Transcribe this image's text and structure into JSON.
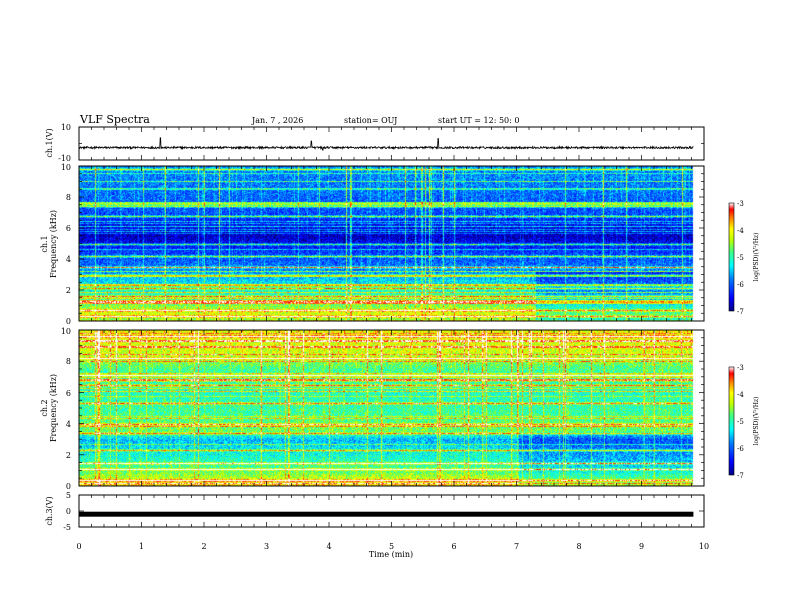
{
  "header": {
    "title": "VLF Spectra",
    "date": "Jan. 7 , 2026",
    "station": "station= OUJ",
    "start": "start UT =  12: 50: 0"
  },
  "colors": {
    "colormap": [
      "#000080",
      "#0000ff",
      "#0080ff",
      "#00ffff",
      "#40ff80",
      "#c0ff00",
      "#ffff00",
      "#ff8000",
      "#ff0000",
      "#ffffff"
    ],
    "background": "#ffffff",
    "waveform": "#000000"
  },
  "chart_data": [
    {
      "type": "line",
      "name": "ch1-waveform",
      "ylabel": "ch.1(V)",
      "ylim": [
        -10,
        10
      ],
      "ytick_labels": [
        "10",
        "-10"
      ],
      "xlim": [
        0,
        10
      ],
      "data_end_min": 9.83,
      "baseline": -2.5,
      "noise_amplitude": 0.6,
      "spikes": [
        [
          1.3,
          3.5
        ],
        [
          3.9,
          -4.0
        ],
        [
          5.75,
          3.0
        ],
        [
          3.72,
          1.5
        ]
      ]
    },
    {
      "type": "heatmap",
      "name": "ch1-spectrogram",
      "ylabel": "Frequency (kHz)",
      "channel_label": "ch.1",
      "xlim": [
        0,
        10
      ],
      "ylim": [
        0,
        10
      ],
      "ytick_labels": [
        "0",
        "2",
        "4",
        "6",
        "8",
        "10"
      ],
      "data_end_min": 9.83,
      "base_level_by_freq": [
        [
          0,
          -4.7
        ],
        [
          0.5,
          -4.2
        ],
        [
          1.5,
          -5.0
        ],
        [
          2.5,
          -5.4
        ],
        [
          3.5,
          -5.9
        ],
        [
          4.5,
          -6.2
        ],
        [
          5.5,
          -6.8
        ],
        [
          7,
          -6.1
        ],
        [
          8.5,
          -5.9
        ],
        [
          10,
          -5.8
        ]
      ],
      "tones_khz": [
        0.3,
        0.7,
        1.2,
        1.6,
        2.1,
        2.3,
        3.0,
        3.5,
        4.2,
        5.0,
        6.8,
        7.4,
        7.6,
        9.8
      ],
      "colorbar": {
        "label": "log(PSD)(V²/Hz)",
        "range": [
          -7,
          -3
        ],
        "tick_labels": [
          "-3",
          "-4",
          "-5",
          "-6",
          "-7"
        ]
      }
    },
    {
      "type": "heatmap",
      "name": "ch2-spectrogram",
      "ylabel": "Frequency (kHz)",
      "channel_label": "ch.2",
      "xlim": [
        0,
        10
      ],
      "ylim": [
        0,
        10
      ],
      "ytick_labels": [
        "0",
        "2",
        "4",
        "6",
        "8",
        "10"
      ],
      "data_end_min": 9.83,
      "base_level_by_freq": [
        [
          0,
          -3.8
        ],
        [
          1,
          -4.8
        ],
        [
          2,
          -5.2
        ],
        [
          3,
          -5.6
        ],
        [
          3.6,
          -4.7
        ],
        [
          4.5,
          -4.9
        ],
        [
          6,
          -5.1
        ],
        [
          7.5,
          -4.9
        ],
        [
          8.5,
          -4.3
        ],
        [
          10,
          -4.1
        ]
      ],
      "tones_khz": [
        0.4,
        1.1,
        1.5,
        2.3,
        3.4,
        4.0,
        5.3,
        6.5,
        6.8,
        7.1,
        8.2,
        9.6
      ],
      "colorbar": {
        "label": "log(PSD)(V²/Hz)",
        "range": [
          -7,
          -3
        ],
        "tick_labels": [
          "-3",
          "-4",
          "-5",
          "-6",
          "-7"
        ]
      }
    },
    {
      "type": "line",
      "name": "ch3-waveform",
      "ylabel": "ch.3(V)",
      "ylim": [
        -5,
        5
      ],
      "ytick_labels": [
        "5",
        "0",
        "-5"
      ],
      "xlim": [
        0,
        10
      ],
      "data_end_min": 9.83,
      "level": -1.0
    }
  ],
  "time_axis": {
    "label": "Time (min)",
    "range": [
      0,
      10
    ],
    "tick_labels": [
      "0",
      "1",
      "2",
      "3",
      "4",
      "5",
      "6",
      "7",
      "8",
      "9",
      "10"
    ]
  }
}
